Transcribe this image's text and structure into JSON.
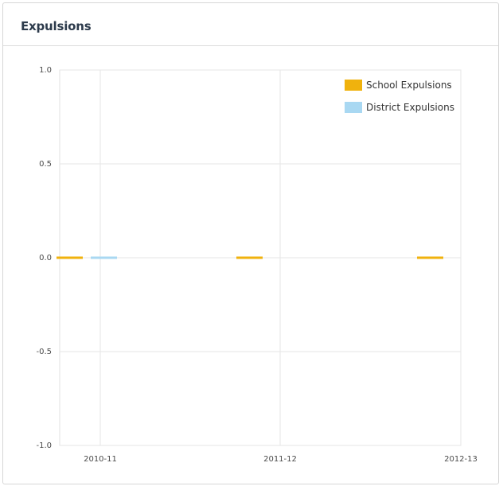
{
  "panel": {
    "title": "Expulsions"
  },
  "chart_data": {
    "type": "bar",
    "categories": [
      "2010-11",
      "2011-12",
      "2012-13"
    ],
    "series": [
      {
        "name": "School Expulsions",
        "values": [
          0,
          0,
          0
        ],
        "color": "#f0b20d"
      },
      {
        "name": "District Expulsions",
        "values": [
          0,
          null,
          null
        ],
        "color": "#a9d8f2"
      }
    ],
    "y_ticks": [
      "1.0",
      "0.5",
      "0.0",
      "-0.5",
      "-1.0"
    ],
    "ylim": [
      -1,
      1
    ],
    "grid": true,
    "legend": "top-right"
  }
}
